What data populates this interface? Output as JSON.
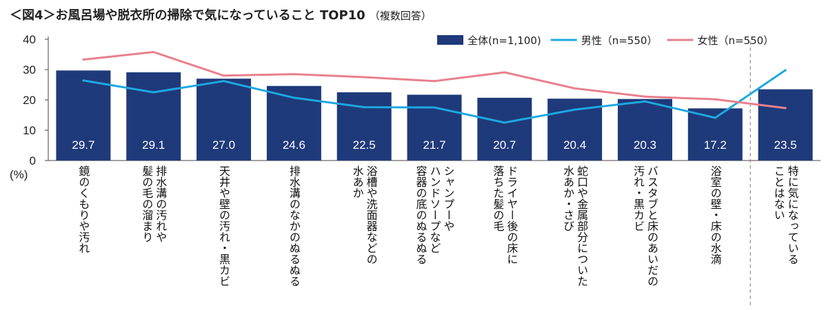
{
  "chart_data": {
    "type": "bar",
    "title": "＜図4＞お風呂場や脱衣所の掃除で気になっていること TOP10",
    "subtitle": "（複数回答）",
    "unit_label": "(%)",
    "ylim": [
      0,
      40
    ],
    "yticks": [
      "0",
      "10",
      "20",
      "30",
      "40"
    ],
    "ytick_values": [
      0,
      10,
      20,
      30,
      40
    ],
    "categories": [
      "鏡のくもりや汚れ",
      "排水溝の汚れや\n髪の毛の溜まり",
      "天井や壁の汚れ・黒カビ",
      "排水溝のなかのぬるぬる",
      "浴槽や洗面器などの\n水あか",
      "シャンプーや\nハンドソープなど\n容器の底のぬるぬる",
      "ドライヤー後の床に\n落ちた髪の毛",
      "蛇口や金属部分についた\n水あか・さび",
      "バスタブと床のあいだの\n汚れ・黒カビ",
      "浴室の壁・床の水滴",
      "特に気になっている\nことはない"
    ],
    "value_labels": [
      "29.7",
      "29.1",
      "27.0",
      "24.6",
      "22.5",
      "21.7",
      "20.7",
      "20.4",
      "20.3",
      "17.2",
      "23.5"
    ],
    "series": [
      {
        "name": "全体(n=1,100)",
        "kind": "bar",
        "color": "#1f3a7a",
        "values": [
          29.7,
          29.1,
          27.0,
          24.6,
          22.5,
          21.7,
          20.7,
          20.4,
          20.3,
          17.2,
          23.5
        ]
      },
      {
        "name": "男性（n=550）",
        "kind": "line",
        "color": "#1ea8e0",
        "values": [
          26.4,
          22.5,
          26.2,
          20.7,
          17.6,
          17.5,
          12.5,
          16.8,
          19.5,
          14.1,
          29.8
        ]
      },
      {
        "name": "女性（n=550）",
        "kind": "line",
        "color": "#e8808c",
        "values": [
          33.3,
          35.8,
          28.0,
          28.5,
          27.5,
          26.2,
          29.1,
          23.8,
          21.1,
          20.2,
          17.3
        ]
      }
    ],
    "legend_position": "top-right",
    "separator_before_index": 10
  }
}
